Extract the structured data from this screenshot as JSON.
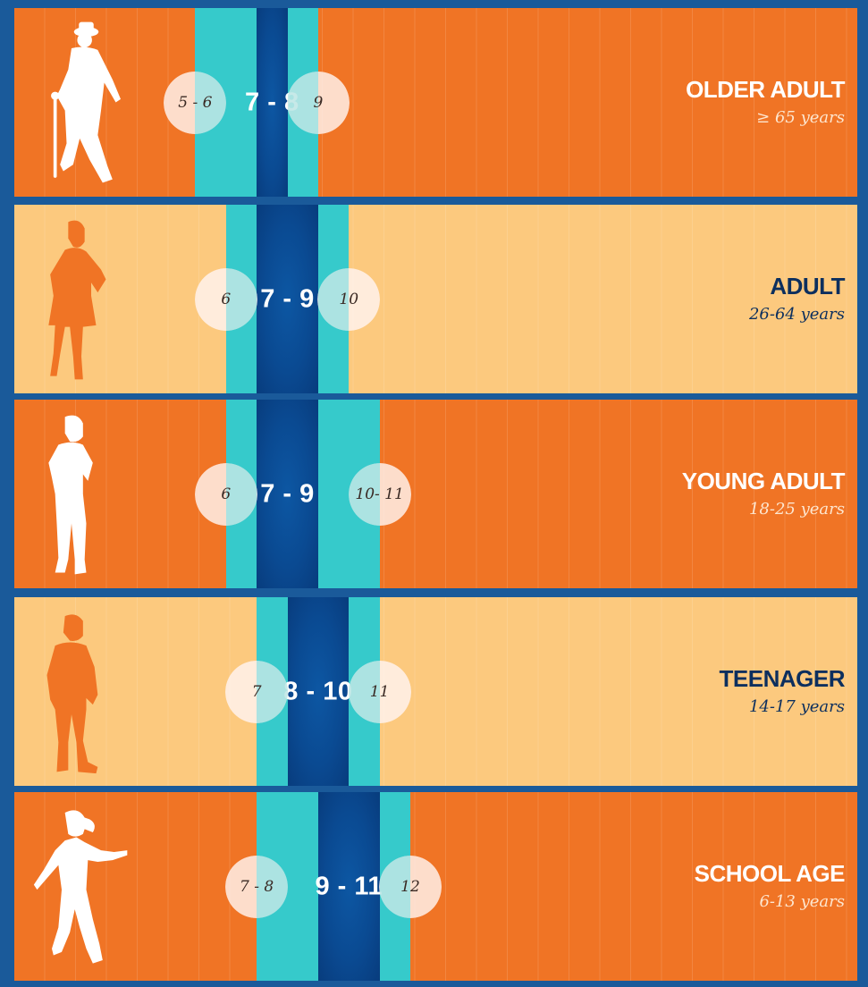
{
  "chart_data": {
    "type": "bar",
    "orientation": "horizontal-range",
    "title": "",
    "xlabel": "",
    "ylabel": "",
    "colors": {
      "background": "#1a5a9a",
      "row_dark": "#f07425",
      "row_light": "#fcc97e",
      "acceptable": "#36cacb",
      "recommended": "#0a4a92",
      "circle": "#fff4f0"
    },
    "scale": {
      "min_hours": 0,
      "max_hours": 14
    },
    "groups": [
      {
        "name": "OLDER ADULT",
        "age_range": "≥ 65 years",
        "figure": "older-adult-silhouette",
        "shade": "dark",
        "recommended_label": "7 - 8",
        "recommended": [
          7,
          8
        ],
        "acceptable": [
          5,
          9
        ],
        "low_label": "5 - 6",
        "high_label": "9"
      },
      {
        "name": "ADULT",
        "age_range": "26-64 years",
        "figure": "adult-silhouette",
        "shade": "light",
        "recommended_label": "7 - 9",
        "recommended": [
          7,
          9
        ],
        "acceptable": [
          6,
          10
        ],
        "low_label": "6",
        "high_label": "10"
      },
      {
        "name": "YOUNG ADULT",
        "age_range": "18-25 years",
        "figure": "young-adult-silhouette",
        "shade": "dark",
        "recommended_label": "7 - 9",
        "recommended": [
          7,
          9
        ],
        "acceptable": [
          6,
          11
        ],
        "low_label": "6",
        "high_label": "10- 11"
      },
      {
        "name": "TEENAGER",
        "age_range": "14-17 years",
        "figure": "teenager-silhouette",
        "shade": "light",
        "recommended_label": "8 - 10",
        "recommended": [
          8,
          10
        ],
        "acceptable": [
          7,
          11
        ],
        "low_label": "7",
        "high_label": "11"
      },
      {
        "name": "SCHOOL AGE",
        "age_range": "6-13 years",
        "figure": "school-age-silhouette",
        "shade": "dark",
        "recommended_label": "9 - 11",
        "recommended": [
          9,
          11
        ],
        "acceptable": [
          7,
          12
        ],
        "low_label": "7 - 8",
        "high_label": "12"
      }
    ]
  }
}
